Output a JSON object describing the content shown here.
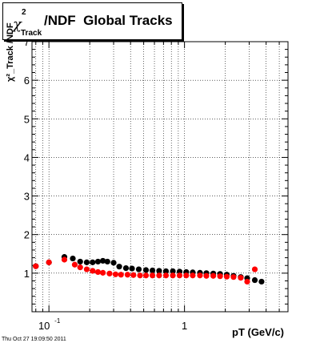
{
  "title": {
    "symbol": "χ",
    "superscript": "2",
    "subscript": "Track",
    "text": "/NDF  Global Tracks"
  },
  "ylabel": "χ²_Track /NDF",
  "footer": "Thu Oct 27 19:09:50 2011",
  "colors": {
    "series_black": "#000000",
    "series_red": "#ff0000",
    "grid": "#000000"
  },
  "chart_data": {
    "type": "scatter",
    "xlabel": "pT (GeV/c)",
    "ylabel": "χ²_Track /NDF",
    "xscale": "log",
    "xlim": [
      0.075,
      5.8
    ],
    "ylim": [
      0,
      7
    ],
    "x_ticks": [
      {
        "value": 0.1,
        "base": "10",
        "exp": "-1"
      },
      {
        "value": 1,
        "base": "1",
        "exp": ""
      }
    ],
    "y_ticks": [
      1,
      2,
      3,
      4,
      5,
      6,
      7
    ],
    "grid": true,
    "series": [
      {
        "color": "#000000",
        "x": [
          0.08,
          0.1,
          0.13,
          0.15,
          0.17,
          0.19,
          0.21,
          0.23,
          0.25,
          0.27,
          0.3,
          0.33,
          0.37,
          0.41,
          0.46,
          0.52,
          0.58,
          0.65,
          0.73,
          0.82,
          0.92,
          1.03,
          1.15,
          1.3,
          1.45,
          1.63,
          1.83,
          2.05,
          2.3,
          2.6,
          2.9,
          3.3,
          3.7
        ],
        "y": [
          1.18,
          1.28,
          1.42,
          1.38,
          1.3,
          1.28,
          1.28,
          1.3,
          1.32,
          1.3,
          1.27,
          1.17,
          1.13,
          1.12,
          1.1,
          1.08,
          1.07,
          1.06,
          1.05,
          1.05,
          1.04,
          1.03,
          1.02,
          1.01,
          1.0,
          0.99,
          0.98,
          0.96,
          0.93,
          0.9,
          0.87,
          0.82,
          0.78
        ]
      },
      {
        "color": "#ff0000",
        "x": [
          0.08,
          0.1,
          0.13,
          0.155,
          0.17,
          0.19,
          0.21,
          0.23,
          0.25,
          0.28,
          0.31,
          0.34,
          0.38,
          0.42,
          0.47,
          0.52,
          0.58,
          0.65,
          0.73,
          0.82,
          0.92,
          1.03,
          1.15,
          1.3,
          1.45,
          1.63,
          1.83,
          2.05,
          2.3,
          2.6,
          2.9,
          3.3
        ],
        "y": [
          1.18,
          1.28,
          1.35,
          1.22,
          1.15,
          1.1,
          1.06,
          1.03,
          1.01,
          0.99,
          0.97,
          0.96,
          0.96,
          0.95,
          0.94,
          0.94,
          0.94,
          0.94,
          0.94,
          0.94,
          0.94,
          0.94,
          0.94,
          0.94,
          0.93,
          0.93,
          0.92,
          0.91,
          0.9,
          0.88,
          0.78,
          1.1
        ]
      }
    ]
  }
}
